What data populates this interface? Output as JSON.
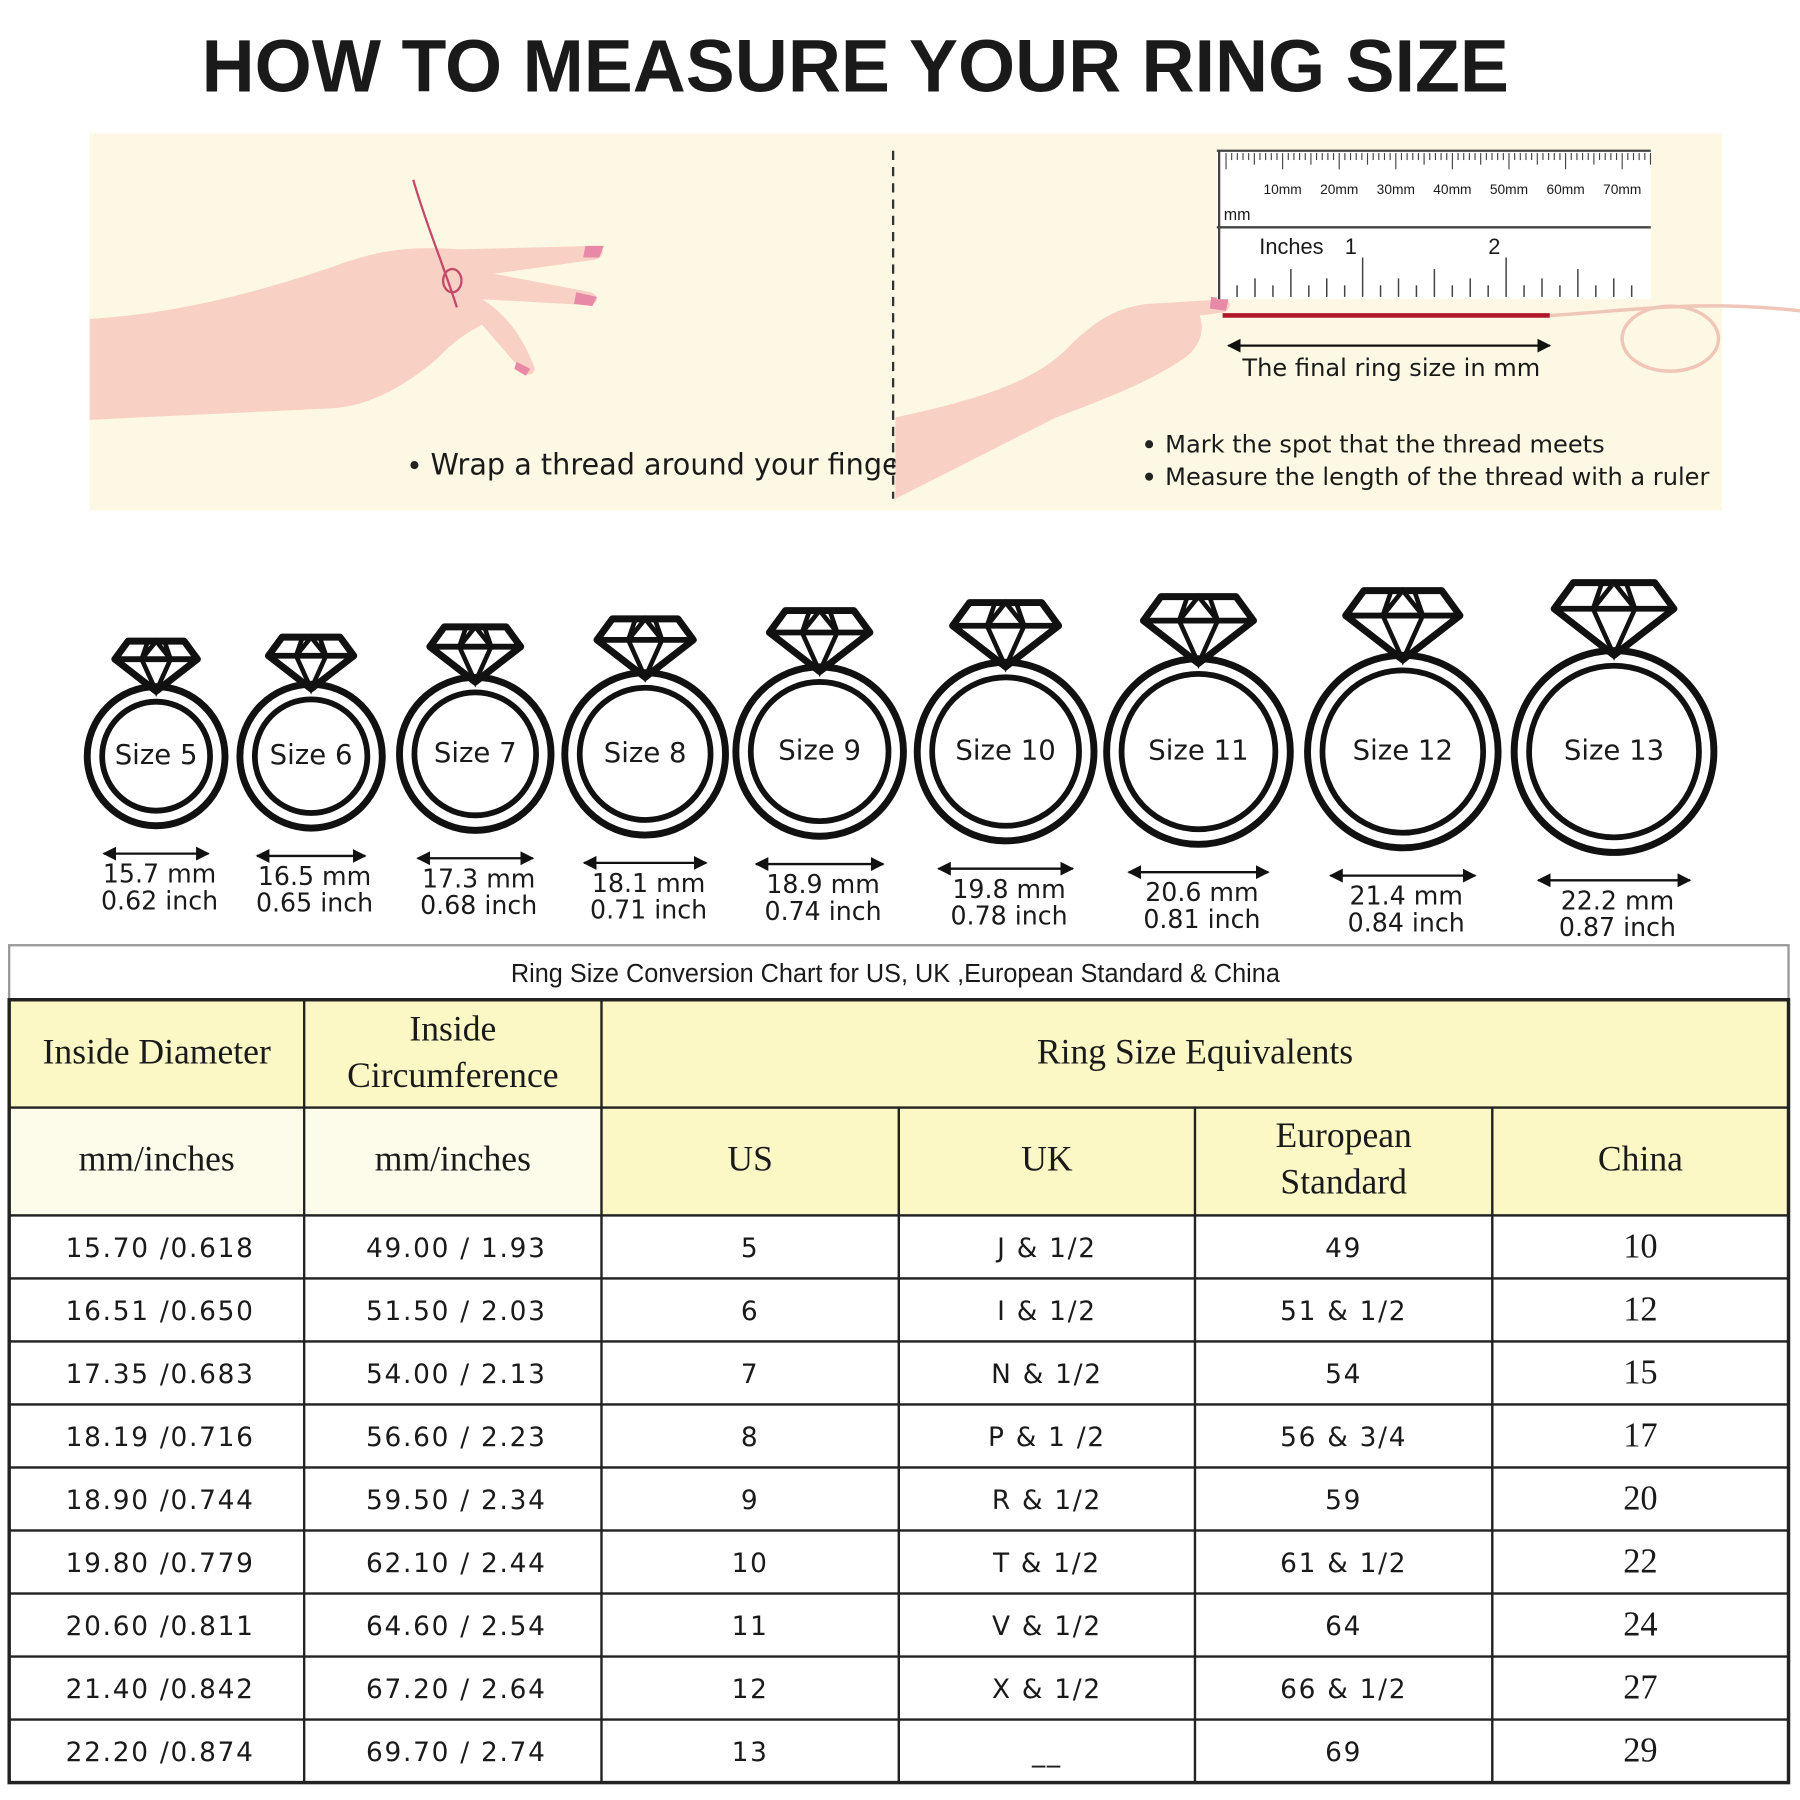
{
  "title": "HOW TO MEASURE YOUR RING SIZE",
  "instructions": {
    "step_wrap": "Wrap a thread around your finger",
    "ruler_mm_labels": [
      "10mm",
      "20mm",
      "30mm",
      "40mm",
      "50mm",
      "60mm",
      "70mm"
    ],
    "ruler_mm_unit": "mm",
    "ruler_inch_unit": "Inches",
    "ruler_inch_labels": [
      "1",
      "2"
    ],
    "ruler_caption": "The final ring size in mm",
    "step_mark": "Mark the spot that the thread meets",
    "step_measure": "Measure the length of the thread with a ruler"
  },
  "rings": [
    {
      "label": "Size 5",
      "mm": "15.7 mm",
      "inch": "0.62 inch"
    },
    {
      "label": "Size 6",
      "mm": "16.5 mm",
      "inch": "0.65 inch"
    },
    {
      "label": "Size 7",
      "mm": "17.3 mm",
      "inch": "0.68 inch"
    },
    {
      "label": "Size 8",
      "mm": "18.1 mm",
      "inch": "0.71 inch"
    },
    {
      "label": "Size 9",
      "mm": "18.9 mm",
      "inch": "0.74 inch"
    },
    {
      "label": "Size 10",
      "mm": "19.8 mm",
      "inch": "0.78 inch"
    },
    {
      "label": "Size 11",
      "mm": "20.6 mm",
      "inch": "0.81 inch"
    },
    {
      "label": "Size 12",
      "mm": "21.4 mm",
      "inch": "0.84 inch"
    },
    {
      "label": "Size 13",
      "mm": "22.2 mm",
      "inch": "0.87 inch"
    }
  ],
  "table": {
    "caption": "Ring Size Conversion Chart for US, UK ,European Standard & China",
    "header": {
      "inside_diameter": "Inside Diameter",
      "inside_circumference": [
        "Inside",
        "Circumference"
      ],
      "equivalents": "Ring Size Equivalents",
      "diameter_unit": "mm/inches",
      "circumference_unit": "mm/inches",
      "us": "US",
      "uk": "UK",
      "european": [
        "European",
        "Standard"
      ],
      "china": "China"
    },
    "rows": [
      [
        "15.70 /0.618",
        "49.00 / 1.93",
        "5",
        "J & 1/2",
        "49",
        "10"
      ],
      [
        "16.51 /0.650",
        "51.50 / 2.03",
        "6",
        "I & 1/2",
        "51 & 1/2",
        "12"
      ],
      [
        "17.35 /0.683",
        "54.00 / 2.13",
        "7",
        "N & 1/2",
        "54",
        "15"
      ],
      [
        "18.19 /0.716",
        "56.60 / 2.23",
        "8",
        "P & 1 /2",
        "56 & 3/4",
        "17"
      ],
      [
        "18.90 /0.744",
        "59.50 / 2.34",
        "9",
        "R & 1/2",
        "59",
        "20"
      ],
      [
        "19.80 /0.779",
        "62.10 / 2.44",
        "10",
        "T & 1/2",
        "61 & 1/2",
        "22"
      ],
      [
        "20.60 /0.811",
        "64.60 / 2.54",
        "11",
        "V & 1/2",
        "64",
        "24"
      ],
      [
        "21.40 /0.842",
        "67.20 / 2.64",
        "12",
        "X & 1/2",
        "66 & 1/2",
        "27"
      ],
      [
        "22.20 /0.874",
        "69.70 / 2.74",
        "13",
        "__",
        "69",
        "29"
      ]
    ]
  }
}
